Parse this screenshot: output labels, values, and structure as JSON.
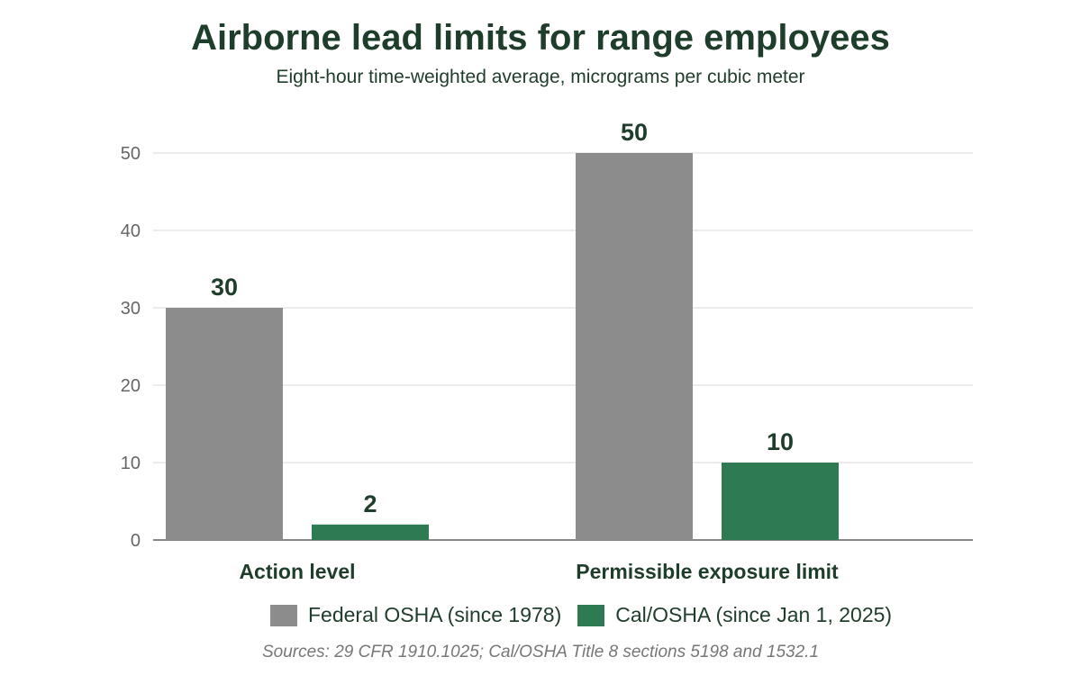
{
  "colors": {
    "federal": "#8c8c8c",
    "cal": "#2e7a53",
    "text_dark": "#1f3d2b",
    "axis_text": "#666666",
    "grid": "#e6e6e6"
  },
  "chart_data": {
    "type": "bar",
    "title": "Airborne lead limits for range employees",
    "subtitle": "Eight-hour time-weighted average, micrograms per cubic meter",
    "categories": [
      "Action level",
      "Permissible exposure limit"
    ],
    "series": [
      {
        "name": "Federal OSHA (since 1978)",
        "values": [
          30,
          50
        ],
        "color": "#8c8c8c"
      },
      {
        "name": "Cal/OSHA (since Jan 1, 2025)",
        "values": [
          2,
          10
        ],
        "color": "#2e7a53"
      }
    ],
    "ylim": [
      0,
      50
    ],
    "yticks": [
      0,
      10,
      20,
      30,
      40,
      50
    ],
    "grid": true,
    "legend": "bottom",
    "source": "Sources: 29 CFR 1910.1025; Cal/OSHA Title 8 sections 5198 and 1532.1"
  }
}
